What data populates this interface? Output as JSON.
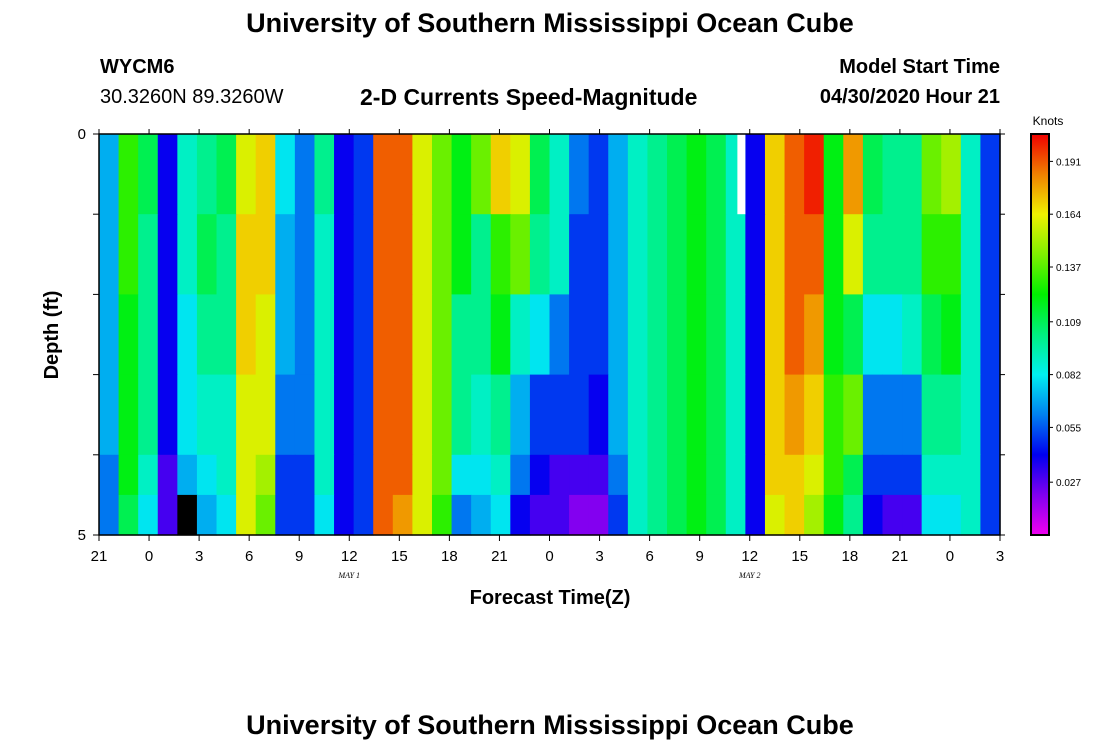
{
  "page": {
    "title_top": "University of Southern Mississippi Ocean Cube",
    "title_bottom": "University of Southern Mississippi Ocean Cube",
    "station_id": "WYCM6",
    "station_coords": "30.3260N 89.3260W",
    "plot_title": "2-D Currents Speed-Magnitude",
    "model_label": "Model Start Time",
    "model_time": "04/30/2020 Hour 21"
  },
  "colors": {
    "palette": [
      "#f000f0",
      "#8000f0",
      "#0000f0",
      "#0080f0",
      "#00f0f0",
      "#00f080",
      "#00f000",
      "#80f000",
      "#f0f000",
      "#f08000",
      "#f00000"
    ],
    "missing": "#000000",
    "blank": "#ffffff",
    "frame": "#000000"
  },
  "chart_data": {
    "type": "heatmap",
    "title": "2-D Currents Speed-Magnitude",
    "xlabel": "Forecast Time(Z)",
    "ylabel": "Depth (ft)",
    "x_ticks": [
      "21",
      "0",
      "3",
      "6",
      "9",
      "12",
      "15",
      "18",
      "21",
      "0",
      "3",
      "6",
      "9",
      "12",
      "15",
      "18",
      "21",
      "0",
      "3"
    ],
    "date_labels": [
      {
        "label": "MAY 1",
        "hour": 15
      },
      {
        "label": "MAY 2",
        "hour": 39
      }
    ],
    "y_ticks": [
      "0",
      "5"
    ],
    "depth_range": [
      0,
      5
    ],
    "hour_range": [
      0,
      54
    ],
    "depth_rows": [
      0,
      1,
      2,
      3,
      4,
      4.5
    ],
    "colorbar": {
      "title": "Knots",
      "ticks": [
        "0.191",
        "0.164",
        "0.137",
        "0.109",
        "0.082",
        "0.055",
        "0.027"
      ],
      "range": [
        0.0,
        0.205
      ]
    },
    "speed_knots": [
      [
        0.07,
        0.13,
        0.11,
        0.04,
        0.09,
        0.1,
        0.11,
        0.16,
        0.17,
        0.08,
        0.06,
        0.1,
        0.04,
        0.05,
        0.19,
        0.19,
        0.16,
        0.14,
        0.12,
        0.14,
        0.17,
        0.16,
        0.11,
        0.09,
        0.06,
        0.05,
        0.07,
        0.09,
        0.1,
        0.11,
        0.12,
        0.11,
        0.09,
        0.04,
        0.17,
        0.19,
        0.2,
        0.12,
        0.18,
        0.11,
        0.1,
        0.1,
        0.14,
        0.15,
        0.09,
        0.05
      ],
      [
        0.07,
        0.13,
        0.1,
        0.04,
        0.09,
        0.11,
        0.1,
        0.17,
        0.17,
        0.07,
        0.06,
        0.09,
        0.04,
        0.05,
        0.19,
        0.19,
        0.16,
        0.14,
        0.12,
        0.1,
        0.13,
        0.14,
        0.1,
        0.09,
        0.05,
        0.05,
        0.07,
        0.09,
        0.1,
        0.11,
        0.12,
        0.11,
        0.09,
        0.04,
        0.17,
        0.19,
        0.19,
        0.12,
        0.16,
        0.1,
        0.1,
        0.1,
        0.13,
        0.13,
        0.09,
        0.05
      ],
      [
        0.07,
        0.12,
        0.1,
        0.04,
        0.08,
        0.1,
        0.1,
        0.17,
        0.16,
        0.07,
        0.06,
        0.09,
        0.04,
        0.05,
        0.19,
        0.19,
        0.16,
        0.14,
        0.1,
        0.1,
        0.12,
        0.09,
        0.08,
        0.06,
        0.05,
        0.05,
        0.07,
        0.09,
        0.1,
        0.11,
        0.12,
        0.11,
        0.09,
        0.04,
        0.17,
        0.19,
        0.18,
        0.12,
        0.11,
        0.08,
        0.08,
        0.09,
        0.11,
        0.12,
        0.09,
        0.05
      ],
      [
        0.07,
        0.12,
        0.1,
        0.04,
        0.08,
        0.09,
        0.09,
        0.16,
        0.16,
        0.06,
        0.06,
        0.09,
        0.04,
        0.05,
        0.19,
        0.19,
        0.16,
        0.14,
        0.1,
        0.09,
        0.1,
        0.07,
        0.05,
        0.05,
        0.05,
        0.04,
        0.07,
        0.09,
        0.1,
        0.11,
        0.12,
        0.11,
        0.09,
        0.04,
        0.17,
        0.18,
        0.17,
        0.13,
        0.14,
        0.06,
        0.06,
        0.06,
        0.1,
        0.1,
        0.09,
        0.05
      ],
      [
        0.06,
        0.12,
        0.09,
        0.03,
        0.07,
        0.08,
        0.09,
        0.16,
        0.15,
        0.05,
        0.05,
        0.09,
        0.04,
        0.05,
        0.19,
        0.19,
        0.16,
        0.14,
        0.08,
        0.08,
        0.09,
        0.06,
        0.04,
        0.03,
        0.03,
        0.03,
        0.06,
        0.09,
        0.1,
        0.11,
        0.12,
        0.11,
        0.09,
        0.04,
        0.17,
        0.17,
        0.16,
        0.13,
        0.11,
        0.05,
        0.05,
        0.05,
        0.09,
        0.09,
        0.09,
        0.05
      ],
      [
        0.06,
        0.11,
        0.08,
        0.03,
        null,
        0.07,
        0.08,
        0.16,
        0.14,
        0.05,
        0.05,
        0.08,
        0.04,
        0.05,
        0.19,
        0.18,
        0.16,
        0.13,
        0.06,
        0.07,
        0.08,
        0.04,
        0.03,
        0.03,
        0.02,
        0.02,
        0.05,
        0.09,
        0.1,
        0.11,
        0.12,
        0.11,
        0.09,
        0.04,
        0.16,
        0.17,
        0.15,
        0.12,
        0.1,
        0.04,
        0.03,
        0.03,
        0.08,
        0.08,
        0.09,
        0.05
      ]
    ],
    "blank_cells": [
      {
        "row": 0,
        "hour": 38.5
      }
    ]
  }
}
